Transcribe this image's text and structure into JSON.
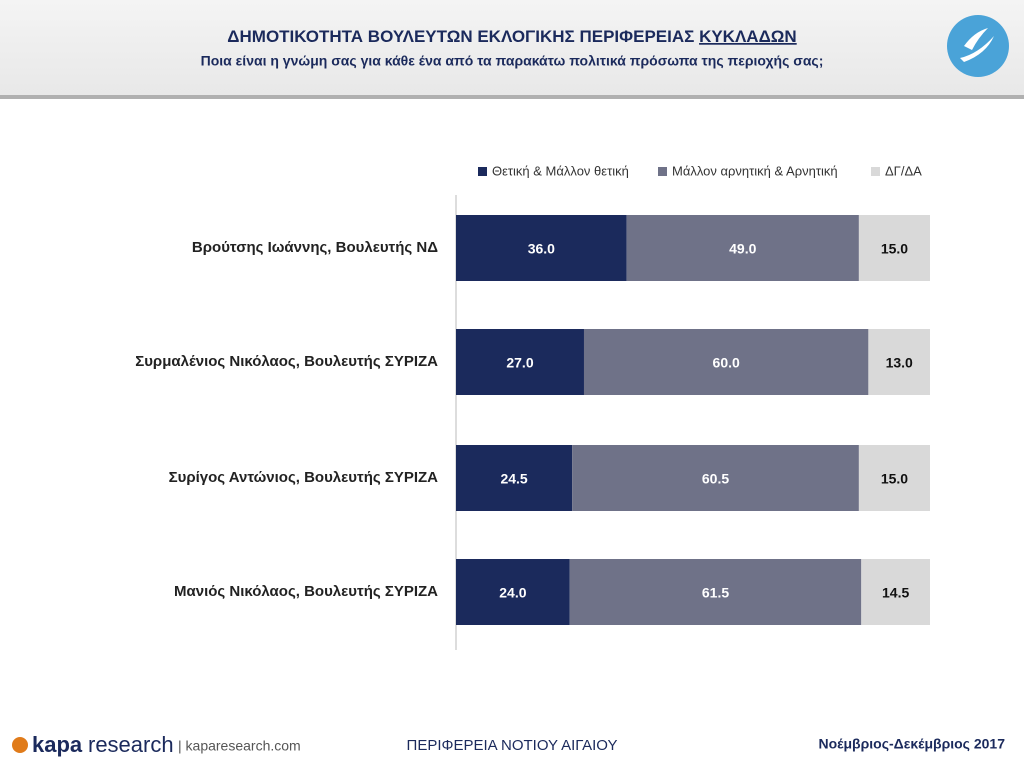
{
  "chart_data": {
    "type": "stacked-bar-horizontal",
    "title": "ΔΗΜΟΤΙΚΟΤΗΤΑ ΒΟΥΛΕΥΤΩΝ ΕΚΛΟΓΙΚΗΣ ΠΕΡΙΦΕΡΕΙΑΣ",
    "title_emphasis": "ΚΥΚΛΑΔΩΝ",
    "subtitle": "Ποια είναι η γνώμη σας για κάθε ένα από τα παρακάτω πολιτικά πρόσωπα της περιοχής σας;",
    "categories": [
      "Βρούτσης Ιωάννης, Βουλευτής ΝΔ",
      "Συρμαλένιος Νικόλαος, Βουλευτής ΣΥΡΙΖΑ",
      "Συρίγος Αντώνιος, Βουλευτής ΣΥΡΙΖΑ",
      "Μανιός Νικόλαος, Βουλευτής ΣΥΡΙΖΑ"
    ],
    "xlim": [
      0,
      100
    ],
    "series": [
      {
        "name": "Θετική & Μάλλον θετική",
        "color": "#1b2a5c",
        "label_color": "#ffffff",
        "values": [
          36,
          27,
          24.5,
          24
        ],
        "value_labels": [
          "36.0",
          "27.0",
          "24.5",
          "24.0"
        ]
      },
      {
        "name": "Μάλλον αρνητική & Αρνητική",
        "color": "#6f7288",
        "label_color": "#ffffff",
        "values": [
          49,
          60,
          60.5,
          61.5
        ],
        "value_labels": [
          "49.0",
          "60.0",
          "60.5",
          "61.5"
        ]
      },
      {
        "name": "ΔΓ/ΔΑ",
        "color": "#d9d9d9",
        "label_color": "#111111",
        "values": [
          15,
          13,
          15,
          14.5
        ],
        "value_labels": [
          "15.0",
          "13.0",
          "15.0",
          "14.5"
        ]
      }
    ]
  },
  "footer": {
    "brand_bold": "kapa",
    "brand_light": "research",
    "site": "| kaparesearch.com",
    "region": "ΠΕΡΙΦΕΡΕΙΑ ΝΟΤΙΟΥ ΑΙΓΑΙΟΥ",
    "period": "Νοέμβριος-Δεκέμβριος 2017"
  }
}
